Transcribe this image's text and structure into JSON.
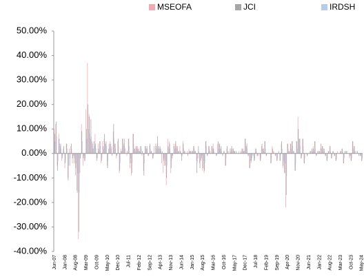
{
  "chart_data": {
    "type": "bar",
    "categories": [
      "Jun-07",
      null,
      null,
      null,
      null,
      null,
      null,
      "Jan-08",
      null,
      null,
      null,
      null,
      null,
      null,
      "Aug-08",
      null,
      null,
      null,
      null,
      null,
      null,
      "Mar-09",
      null,
      null,
      null,
      null,
      null,
      null,
      "Oct-09",
      null,
      null,
      null,
      null,
      null,
      null,
      "May-10",
      null,
      null,
      null,
      null,
      null,
      null,
      "Dec-10",
      null,
      null,
      null,
      null,
      null,
      null,
      "Jul-11",
      null,
      null,
      null,
      null,
      null,
      null,
      "Feb-12",
      null,
      null,
      null,
      null,
      null,
      null,
      "Sep-12",
      null,
      null,
      null,
      null,
      null,
      null,
      "Apr-13",
      null,
      null,
      null,
      null,
      null,
      null,
      "Nov-13",
      null,
      null,
      null,
      null,
      null,
      null,
      "Jun-14",
      null,
      null,
      null,
      null,
      null,
      null,
      "Jan-15",
      null,
      null,
      null,
      null,
      null,
      null,
      "Aug-15",
      null,
      null,
      null,
      null,
      null,
      null,
      "Mar-16",
      null,
      null,
      null,
      null,
      null,
      null,
      "Oct-16",
      null,
      null,
      null,
      null,
      null,
      null,
      "May-17",
      null,
      null,
      null,
      null,
      null,
      null,
      "Dec-17",
      null,
      null,
      null,
      null,
      null,
      null,
      "Jul-18",
      null,
      null,
      null,
      null,
      null,
      null,
      "Feb-19",
      null,
      null,
      null,
      null,
      null,
      null,
      "Sep-19",
      null,
      null,
      null,
      null,
      null,
      null,
      "Apr-20",
      null,
      null,
      null,
      null,
      null,
      null,
      "Nov-20",
      null,
      null,
      null,
      null,
      null,
      null,
      "Jun-21",
      null,
      null,
      null,
      null,
      null,
      null,
      "Jan-22",
      null,
      null,
      null,
      null,
      null,
      null,
      "Aug-22",
      null,
      null,
      null,
      null,
      null,
      null,
      "Mar-23",
      null,
      null,
      null,
      null,
      null,
      null,
      "Oct-23",
      null,
      null,
      null,
      null,
      null,
      null,
      "May-24"
    ],
    "series": [
      {
        "name": "MSEOFA",
        "color": "#eeaab2",
        "values": [
          10,
          12,
          -5,
          8,
          3,
          -3,
          2,
          -6,
          4,
          -10,
          2,
          3,
          -4,
          -1,
          -9,
          -15,
          -35,
          -8,
          12,
          -5,
          -3,
          18,
          37,
          16,
          6,
          5,
          2,
          8,
          -2,
          4,
          5,
          -4,
          5,
          6,
          4,
          -5,
          2,
          5,
          3,
          9,
          4,
          -2,
          5,
          -8,
          2,
          6,
          4,
          2,
          -1,
          6,
          -6,
          -9,
          8,
          2,
          3,
          3,
          2,
          3,
          -1,
          -7,
          3,
          2,
          -1,
          3,
          1,
          -2,
          3,
          4,
          4,
          2,
          3,
          -4,
          -8,
          -5,
          -13,
          6,
          5,
          -8,
          -2,
          4,
          4,
          3,
          1,
          3,
          -1,
          5,
          1,
          0,
          1,
          2,
          1,
          1,
          3,
          1,
          -3,
          -2,
          -4,
          -3,
          -7,
          -8,
          5,
          -1,
          3,
          1,
          3,
          4,
          0,
          -1,
          4,
          4,
          2,
          0,
          1,
          -5,
          2,
          1,
          0,
          2,
          2,
          1,
          0,
          0,
          1,
          0,
          2,
          2,
          6,
          3,
          -1,
          -6,
          -4,
          0,
          -3,
          2,
          -1,
          -1,
          -3,
          3,
          2,
          5,
          -1,
          0,
          0,
          -4,
          3,
          1,
          -1,
          -3,
          0,
          -3,
          4,
          -6,
          -8,
          -22,
          4,
          1,
          4,
          5,
          1,
          -7,
          5,
          15,
          6,
          -2,
          6,
          -4,
          0,
          -1,
          0,
          1,
          1,
          3,
          5,
          -1,
          1,
          1,
          2,
          3,
          2,
          -1,
          -3,
          1,
          3,
          -2,
          1,
          -1,
          -3,
          1,
          0,
          1,
          2,
          -4,
          1,
          1,
          0,
          -2,
          -3,
          5,
          3,
          1,
          1,
          0,
          -1,
          -3
        ]
      },
      {
        "name": "JCI",
        "color": "#a6a6a6",
        "values": [
          8,
          13,
          -7,
          6,
          4,
          -2,
          3,
          -4,
          4,
          -11,
          -5,
          4,
          -2,
          -4,
          -6,
          -16,
          -32,
          -2,
          9,
          -2,
          -3,
          10,
          20,
          15,
          14,
          4,
          5,
          4,
          -3,
          2,
          5,
          -3,
          3,
          8,
          5,
          -6,
          4,
          4,
          -1,
          12,
          4,
          -1,
          6,
          -7,
          1,
          6,
          6,
          0,
          1,
          6,
          -4,
          -8,
          8,
          2,
          3,
          2,
          1,
          3,
          1,
          -9,
          3,
          3,
          -1,
          4,
          1,
          -2,
          0,
          3,
          7,
          3,
          2,
          1,
          -3,
          -5,
          -10,
          3,
          4,
          -6,
          -1,
          3,
          5,
          3,
          1,
          1,
          -3,
          4,
          1,
          0,
          -1,
          1,
          1,
          1,
          3,
          1,
          -8,
          3,
          -6,
          -2,
          -6,
          -7,
          5,
          -1,
          3,
          0,
          3,
          2,
          0,
          -1,
          5,
          4,
          3,
          -1,
          1,
          -5,
          3,
          0,
          2,
          3,
          2,
          1,
          1,
          0,
          0,
          1,
          2,
          1,
          6,
          4,
          -1,
          -6,
          -3,
          -1,
          -3,
          2,
          -1,
          0,
          -3,
          4,
          2,
          5,
          -1,
          0,
          0,
          -4,
          2,
          0,
          -1,
          -3,
          1,
          -3,
          5,
          -5,
          -8,
          -17,
          4,
          1,
          4,
          5,
          1,
          -7,
          5,
          10,
          6,
          -2,
          6,
          -4,
          0,
          -1,
          0,
          1,
          2,
          2,
          5,
          -1,
          1,
          1,
          4,
          3,
          2,
          -1,
          -3,
          1,
          3,
          -2,
          1,
          -1,
          -3,
          0,
          0,
          1,
          2,
          -4,
          1,
          1,
          0,
          -1,
          -3,
          5,
          3,
          0,
          1,
          -1,
          -1,
          -3
        ]
      },
      {
        "name": "IRDSH",
        "color": "#b8cce6",
        "values": [
          5,
          7,
          -3,
          4,
          2,
          -1,
          1,
          -3,
          2,
          -5,
          -2,
          2,
          -1,
          -2,
          -4,
          -8,
          -16,
          -1,
          5,
          -1,
          -2,
          6,
          10,
          8,
          7,
          2,
          3,
          2,
          -2,
          1,
          3,
          -2,
          2,
          4,
          3,
          -3,
          2,
          2,
          0,
          6,
          2,
          -1,
          3,
          -4,
          1,
          3,
          3,
          0,
          0,
          3,
          -2,
          -4,
          4,
          1,
          2,
          1,
          1,
          2,
          0,
          -4,
          2,
          2,
          0,
          2,
          0,
          -1,
          0,
          2,
          3,
          2,
          1,
          0,
          -2,
          -3,
          -5,
          2,
          2,
          -3,
          0,
          2,
          2,
          2,
          0,
          1,
          -1,
          2,
          0,
          0,
          0,
          1,
          0,
          1,
          2,
          0,
          -4,
          1,
          -3,
          -1,
          -3,
          -4,
          3,
          0,
          2,
          0,
          2,
          1,
          0,
          0,
          2,
          2,
          1,
          0,
          0,
          -2,
          1,
          0,
          1,
          1,
          1,
          0,
          0,
          0,
          0,
          0,
          1,
          1,
          3,
          2,
          0,
          -3,
          -2,
          0,
          -2,
          1,
          0,
          0,
          -2,
          2,
          1,
          2,
          0,
          0,
          0,
          -2,
          1,
          0,
          0,
          -2,
          0,
          -1,
          2,
          -3,
          -4,
          -9,
          2,
          0,
          2,
          3,
          0,
          -4,
          2,
          6,
          3,
          -1,
          3,
          -2,
          0,
          0,
          0,
          0,
          1,
          1,
          2,
          0,
          0,
          0,
          2,
          1,
          1,
          0,
          -2,
          0,
          1,
          -1,
          0,
          0,
          -2,
          0,
          0,
          0,
          1,
          -2,
          0,
          0,
          0,
          -1,
          -2,
          2,
          1,
          0,
          0,
          0,
          -1,
          -2
        ]
      }
    ],
    "ylim": [
      -40,
      50
    ],
    "yticks": [
      {
        "value": -40,
        "label": "-40.00%"
      },
      {
        "value": -30,
        "label": "-30.00%"
      },
      {
        "value": -20,
        "label": "-20.00%"
      },
      {
        "value": -10,
        "label": "-10.00%"
      },
      {
        "value": 0,
        "label": "0.00%"
      },
      {
        "value": 10,
        "label": "10.00%"
      },
      {
        "value": 20,
        "label": "20.00%"
      },
      {
        "value": 30,
        "label": "30.00%"
      },
      {
        "value": 40,
        "label": "40.00%"
      },
      {
        "value": 50,
        "label": "50.00%"
      }
    ],
    "legend": "top"
  }
}
